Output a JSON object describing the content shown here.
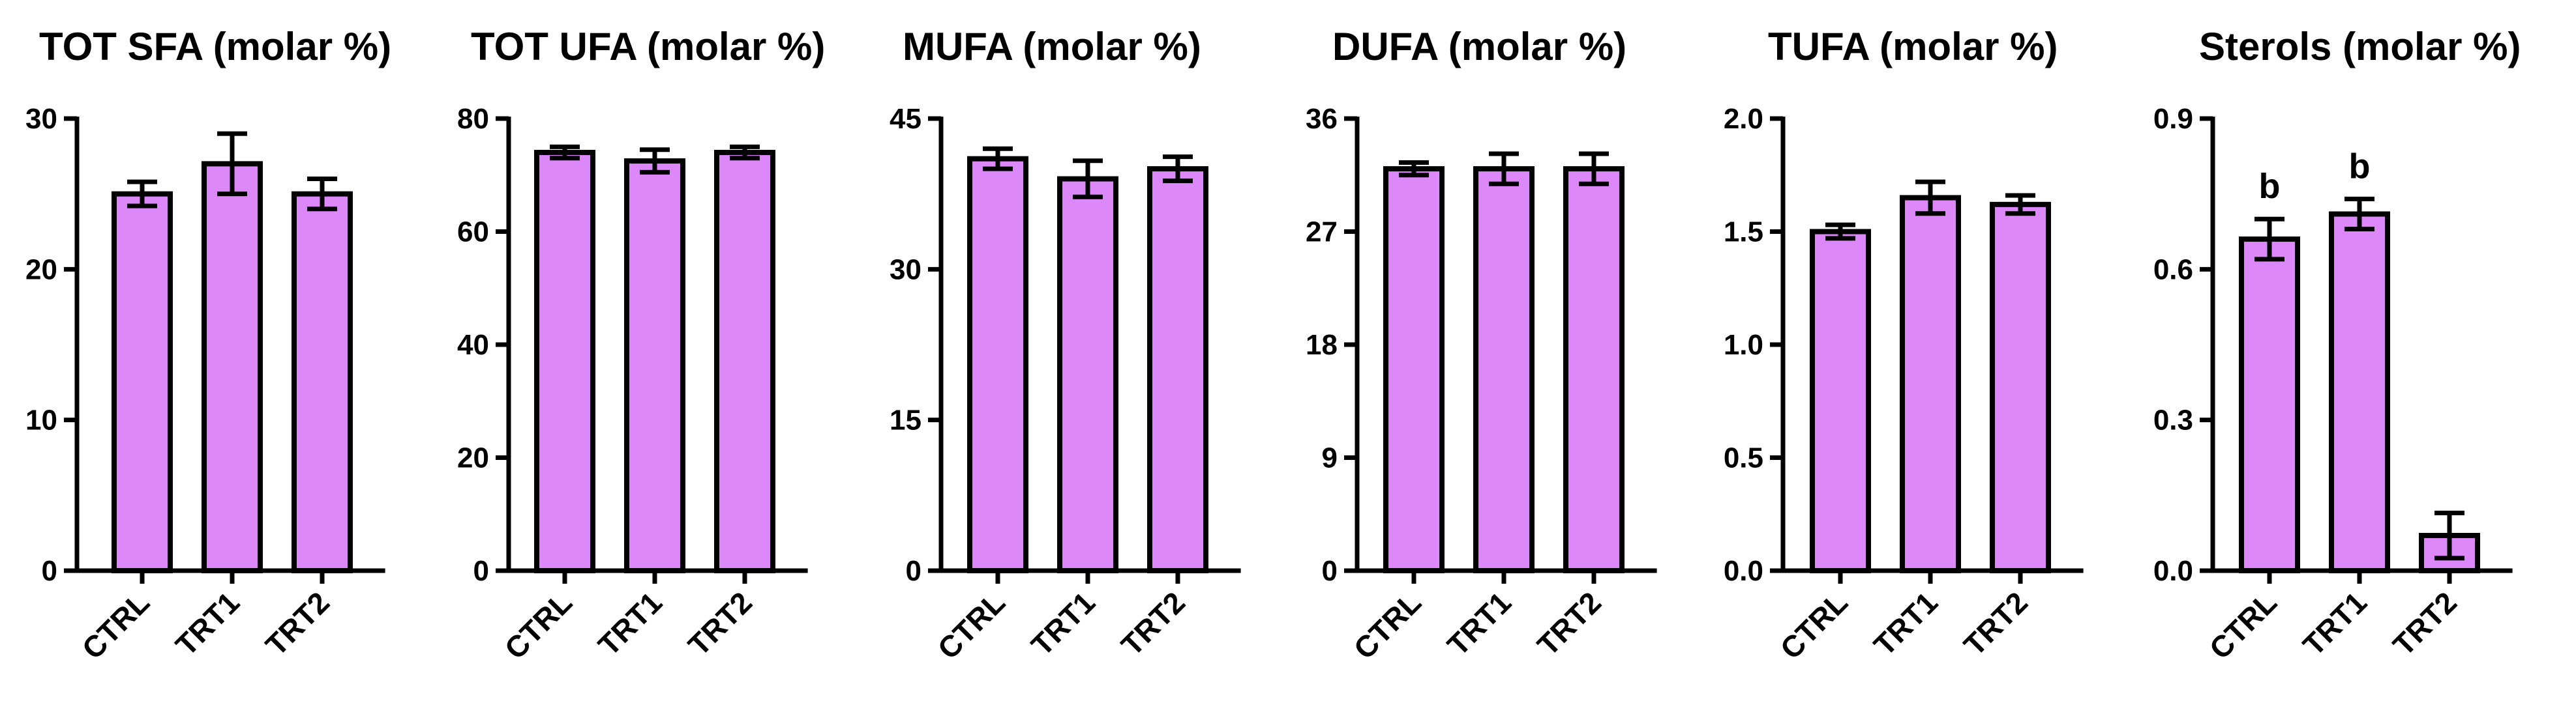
{
  "chart_data": [
    {
      "type": "bar",
      "title": "TOT SFA (molar %)",
      "categories": [
        "CTRL",
        "TRT1",
        "TRT2"
      ],
      "values": [
        25.0,
        27.0,
        25.0
      ],
      "errors": [
        0.8,
        2.0,
        1.0
      ],
      "annotations": [
        "",
        "",
        ""
      ],
      "ylim": [
        0,
        30
      ],
      "yticks": [
        0,
        10,
        20,
        30
      ],
      "ytick_labels": [
        "0",
        "10",
        "20",
        "30"
      ]
    },
    {
      "type": "bar",
      "title": "TOT UFA (molar %)",
      "categories": [
        "CTRL",
        "TRT1",
        "TRT2"
      ],
      "values": [
        74.0,
        72.5,
        74.0
      ],
      "errors": [
        1.0,
        2.0,
        1.0
      ],
      "annotations": [
        "",
        "",
        ""
      ],
      "ylim": [
        0,
        80
      ],
      "yticks": [
        0,
        20,
        40,
        60,
        80
      ],
      "ytick_labels": [
        "0",
        "20",
        "40",
        "60",
        "80"
      ]
    },
    {
      "type": "bar",
      "title": "MUFA (molar %)",
      "categories": [
        "CTRL",
        "TRT1",
        "TRT2"
      ],
      "values": [
        41.0,
        39.0,
        40.0
      ],
      "errors": [
        1.0,
        1.8,
        1.2
      ],
      "annotations": [
        "",
        "",
        ""
      ],
      "ylim": [
        0,
        45
      ],
      "yticks": [
        0,
        15,
        30,
        45
      ],
      "ytick_labels": [
        "0",
        "15",
        "30",
        "45"
      ]
    },
    {
      "type": "bar",
      "title": "DUFA (molar %)",
      "categories": [
        "CTRL",
        "TRT1",
        "TRT2"
      ],
      "values": [
        32.0,
        32.0,
        32.0
      ],
      "errors": [
        0.5,
        1.2,
        1.2
      ],
      "annotations": [
        "",
        "",
        ""
      ],
      "ylim": [
        0,
        36
      ],
      "yticks": [
        0,
        9,
        18,
        27,
        36
      ],
      "ytick_labels": [
        "0",
        "9",
        "18",
        "27",
        "36"
      ]
    },
    {
      "type": "bar",
      "title": "TUFA (molar %)",
      "categories": [
        "CTRL",
        "TRT1",
        "TRT2"
      ],
      "values": [
        1.5,
        1.65,
        1.62
      ],
      "errors": [
        0.03,
        0.07,
        0.04
      ],
      "annotations": [
        "",
        "",
        ""
      ],
      "ylim": [
        0,
        2.0
      ],
      "yticks": [
        0,
        0.5,
        1.0,
        1.5,
        2.0
      ],
      "ytick_labels": [
        "0.0",
        "0.5",
        "1.0",
        "1.5",
        "2.0"
      ]
    },
    {
      "type": "bar",
      "title": "Sterols (molar %)",
      "categories": [
        "CTRL",
        "TRT1",
        "TRT2"
      ],
      "values": [
        0.66,
        0.71,
        0.07
      ],
      "errors": [
        0.04,
        0.03,
        0.045
      ],
      "annotations": [
        "b",
        "b",
        ""
      ],
      "ylim": [
        0,
        0.9
      ],
      "yticks": [
        0,
        0.3,
        0.6,
        0.9
      ],
      "ytick_labels": [
        "0.0",
        "0.3",
        "0.6",
        "0.9"
      ]
    }
  ],
  "colors": {
    "bar_fill": "#dd88f8",
    "bar_stroke": "#000000",
    "axis": "#000000"
  }
}
